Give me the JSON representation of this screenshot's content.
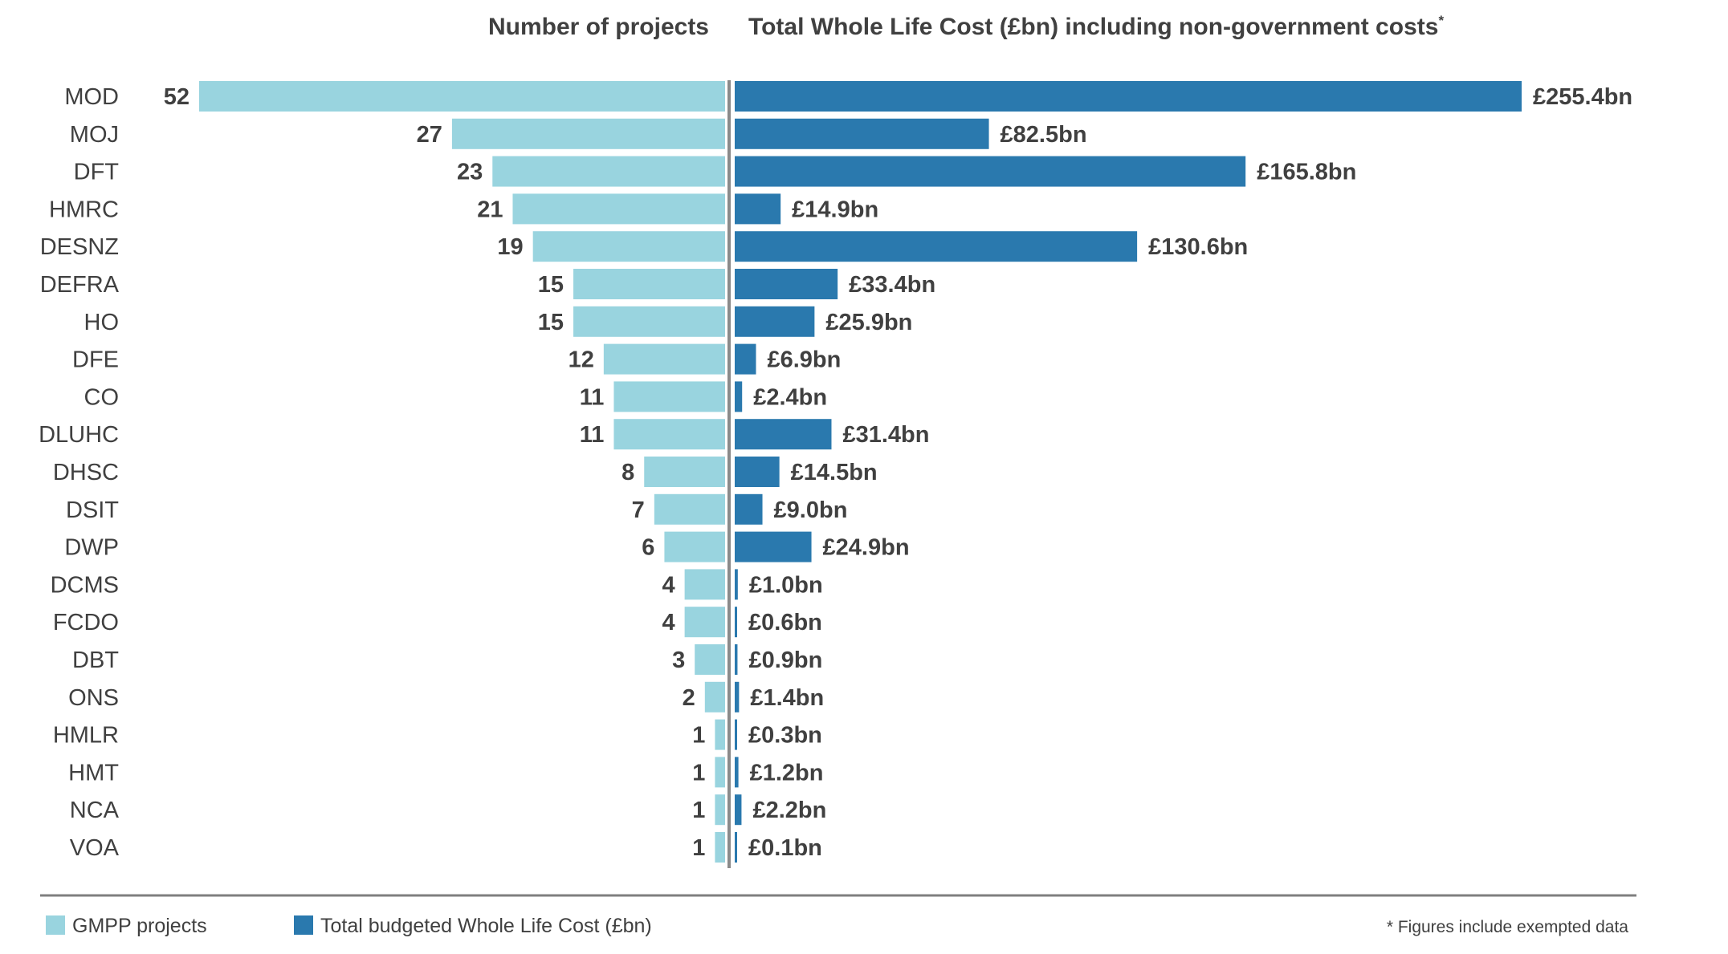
{
  "chart_data": {
    "type": "bar",
    "left_header": "Number of projects",
    "right_header": "Total Whole Life Cost (£bn) including non-government costs",
    "right_header_marker": "*",
    "categories": [
      "MOD",
      "MOJ",
      "DFT",
      "HMRC",
      "DESNZ",
      "DEFRA",
      "HO",
      "DFE",
      "CO",
      "DLUHC",
      "DHSC",
      "DSIT",
      "DWP",
      "DCMS",
      "FCDO",
      "DBT",
      "ONS",
      "HMLR",
      "HMT",
      "NCA",
      "VOA"
    ],
    "series": [
      {
        "name": "GMPP projects",
        "color": "#99d4df",
        "values": [
          52,
          27,
          23,
          21,
          19,
          15,
          15,
          12,
          11,
          11,
          8,
          7,
          6,
          4,
          4,
          3,
          2,
          1,
          1,
          1,
          1
        ],
        "labels": [
          "52",
          "27",
          "23",
          "21",
          "19",
          "15",
          "15",
          "12",
          "11",
          "11",
          "8",
          "7",
          "6",
          "4",
          "4",
          "3",
          "2",
          "1",
          "1",
          "1",
          "1"
        ]
      },
      {
        "name": "Total budgeted Whole Life Cost (£bn)",
        "color": "#2a79ae",
        "values": [
          255.4,
          82.5,
          165.8,
          14.9,
          130.6,
          33.4,
          25.9,
          6.9,
          2.4,
          31.4,
          14.5,
          9.0,
          24.9,
          1.0,
          0.6,
          0.9,
          1.4,
          0.3,
          1.2,
          2.2,
          0.1
        ],
        "labels": [
          "£255.4bn",
          "£82.5bn",
          "£165.8bn",
          "£14.9bn",
          "£130.6bn",
          "£33.4bn",
          "£25.9bn",
          "£6.9bn",
          "£2.4bn",
          "£31.4bn",
          "£14.5bn",
          "£9.0bn",
          "£24.9bn",
          "£1.0bn",
          "£0.6bn",
          "£0.9bn",
          "£1.4bn",
          "£0.3bn",
          "£1.2bn",
          "£2.2bn",
          "£0.1bn"
        ]
      }
    ],
    "legend_position": "bottom-left",
    "footnote": "* Figures include exempted data",
    "grid": false
  }
}
